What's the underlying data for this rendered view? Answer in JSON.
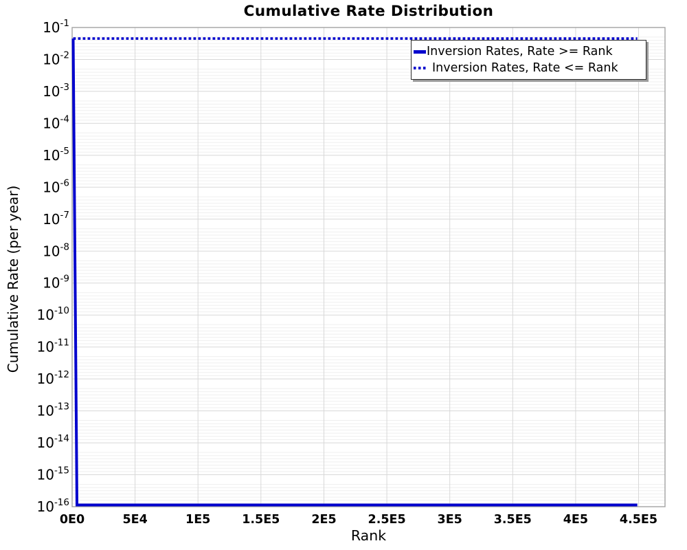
{
  "chart_data": {
    "type": "line",
    "title": "Cumulative Rate Distribution",
    "xlabel": "Rank",
    "ylabel": "Cumulative Rate (per year)",
    "x_axis": {
      "min": 0,
      "max": 471000,
      "ticks": [
        {
          "value": 0,
          "label": "0E0"
        },
        {
          "value": 50000,
          "label": "5E4"
        },
        {
          "value": 100000,
          "label": "1E5"
        },
        {
          "value": 150000,
          "label": "1.5E5"
        },
        {
          "value": 200000,
          "label": "2E5"
        },
        {
          "value": 250000,
          "label": "2.5E5"
        },
        {
          "value": 300000,
          "label": "3E5"
        },
        {
          "value": 350000,
          "label": "3.5E5"
        },
        {
          "value": 400000,
          "label": "4E5"
        },
        {
          "value": 450000,
          "label": "4.5E5"
        }
      ]
    },
    "y_axis": {
      "scale": "log",
      "max_exp": -1,
      "min_exp": -16,
      "tick_exponents": [
        -1,
        -2,
        -3,
        -4,
        -5,
        -6,
        -7,
        -8,
        -9,
        -10,
        -11,
        -12,
        -13,
        -14,
        -15,
        -16
      ],
      "tick_base": "10"
    },
    "grid": {
      "major_color": "#d8d8d8",
      "minor_color": "#efefef",
      "border_color": "#a3a3a3",
      "background": "#ffffff"
    },
    "series": [
      {
        "name": "Inversion Rates, Rate >= Rank",
        "style": "solid",
        "color": "#0000cd",
        "points": [
          [
            0,
            0.045
          ],
          [
            3800,
            1e-16
          ],
          [
            449000,
            1e-16
          ]
        ]
      },
      {
        "name": "Inversion Rates, Rate <= Rank",
        "style": "dotted",
        "color": "#0000cd",
        "points": [
          [
            0,
            0.045
          ],
          [
            449000,
            0.045
          ]
        ]
      }
    ],
    "legend_position": "top-right"
  }
}
